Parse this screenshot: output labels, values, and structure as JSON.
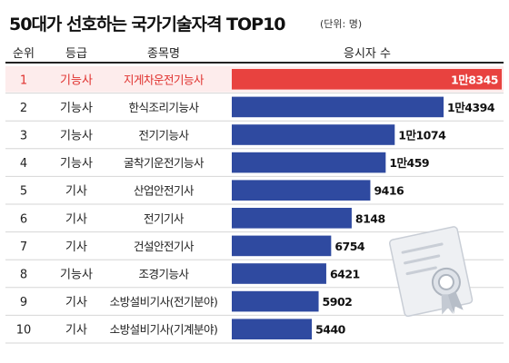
{
  "title": "50대가 선호하는 국가기술자격 TOP10",
  "unit": "(단위: 명)",
  "headers": {
    "rank": "순위",
    "grade": "등급",
    "name": "종목명",
    "count": "응시자 수"
  },
  "colors": {
    "highlight": "#e8423f",
    "bar": "#2f4aa0",
    "highlight_text": "#e0312e",
    "highlight_row": "#fdecec"
  },
  "icon": "certificate-icon",
  "chart_data": {
    "type": "bar",
    "orientation": "horizontal",
    "title": "50대가 선호하는 국가기술자격 TOP10",
    "unit": "(단위: 명)",
    "categories": [
      "지게차운전기능사",
      "한식조리기능사",
      "전기기능사",
      "굴착기운전기능사",
      "산업안전기사",
      "전기기사",
      "건설안전기사",
      "조경기능사",
      "소방설비기사(전기분야)",
      "소방설비기사(기계분야)"
    ],
    "ranks": [
      "1",
      "2",
      "3",
      "4",
      "5",
      "6",
      "7",
      "8",
      "9",
      "10"
    ],
    "grades": [
      "기능사",
      "기능사",
      "기능사",
      "기능사",
      "기사",
      "기사",
      "기사",
      "기능사",
      "기사",
      "기사"
    ],
    "values": [
      18345,
      14394,
      11074,
      10459,
      9416,
      8148,
      6754,
      6421,
      5902,
      5440
    ],
    "labels": [
      "1만8345",
      "1만4394",
      "1만1074",
      "1만459",
      "9416",
      "8148",
      "6754",
      "6421",
      "5902",
      "5440"
    ],
    "highlight_index": 0
  }
}
